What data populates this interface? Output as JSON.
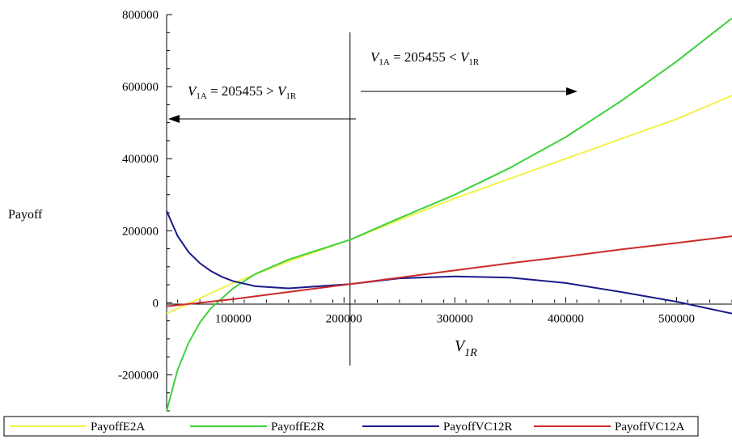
{
  "chart_data": {
    "type": "line",
    "ylabel": "Payoff",
    "xlabel_main": "V",
    "xlabel_sub": "1R",
    "xlim": [
      40000,
      550000
    ],
    "ylim": [
      -300000,
      800000
    ],
    "xticks": [
      100000,
      200000,
      300000,
      400000,
      500000
    ],
    "xtick_labels": [
      "100000",
      "200000",
      "300000",
      "400000",
      "500000"
    ],
    "yticks": [
      -200000,
      0,
      200000,
      400000,
      600000,
      800000
    ],
    "ytick_labels": [
      "-200000",
      "0",
      "200000",
      "400000",
      "600000",
      "800000"
    ],
    "threshold_x": 205455,
    "annotations": {
      "left": {
        "v": "V",
        "sub": "1A",
        "eq": " = 205455 > ",
        "v2": "V",
        "sub2": "1R"
      },
      "right": {
        "v": "V",
        "sub": "1A",
        "eq": " = 205455 < ",
        "v2": "V",
        "sub2": "1R"
      }
    },
    "series": [
      {
        "name": "PayoffE2A",
        "color": "#f2f24a",
        "x": [
          40000,
          100000,
          150000,
          205455,
          250000,
          300000,
          350000,
          400000,
          450000,
          500000,
          550000
        ],
        "y": [
          -30000,
          55000,
          115000,
          175000,
          230000,
          290000,
          345000,
          400000,
          455000,
          510000,
          575000
        ]
      },
      {
        "name": "PayoffE2R",
        "color": "#3ed13e",
        "x": [
          40000,
          50000,
          60000,
          70000,
          80000,
          100000,
          120000,
          150000,
          205455,
          250000,
          300000,
          350000,
          400000,
          450000,
          500000,
          550000
        ],
        "y": [
          -300000,
          -185000,
          -110000,
          -55000,
          -15000,
          40000,
          80000,
          120000,
          175000,
          235000,
          300000,
          375000,
          460000,
          560000,
          670000,
          790000
        ]
      },
      {
        "name": "PayoffVC12R",
        "color": "#1a1a8c",
        "x": [
          40000,
          50000,
          60000,
          70000,
          80000,
          90000,
          100000,
          120000,
          150000,
          205455,
          250000,
          300000,
          350000,
          400000,
          450000,
          500000,
          550000
        ],
        "y": [
          255000,
          185000,
          140000,
          110000,
          88000,
          72000,
          60000,
          46000,
          40000,
          52000,
          68000,
          73000,
          70000,
          55000,
          30000,
          3000,
          -30000
        ]
      },
      {
        "name": "PayoffVC12A",
        "color": "#cc2a2a",
        "x": [
          40000,
          100000,
          150000,
          205455,
          250000,
          300000,
          350000,
          400000,
          450000,
          500000,
          550000
        ],
        "y": [
          -10000,
          10000,
          30000,
          52000,
          70000,
          90000,
          110000,
          128000,
          148000,
          166000,
          185000
        ]
      }
    ]
  }
}
